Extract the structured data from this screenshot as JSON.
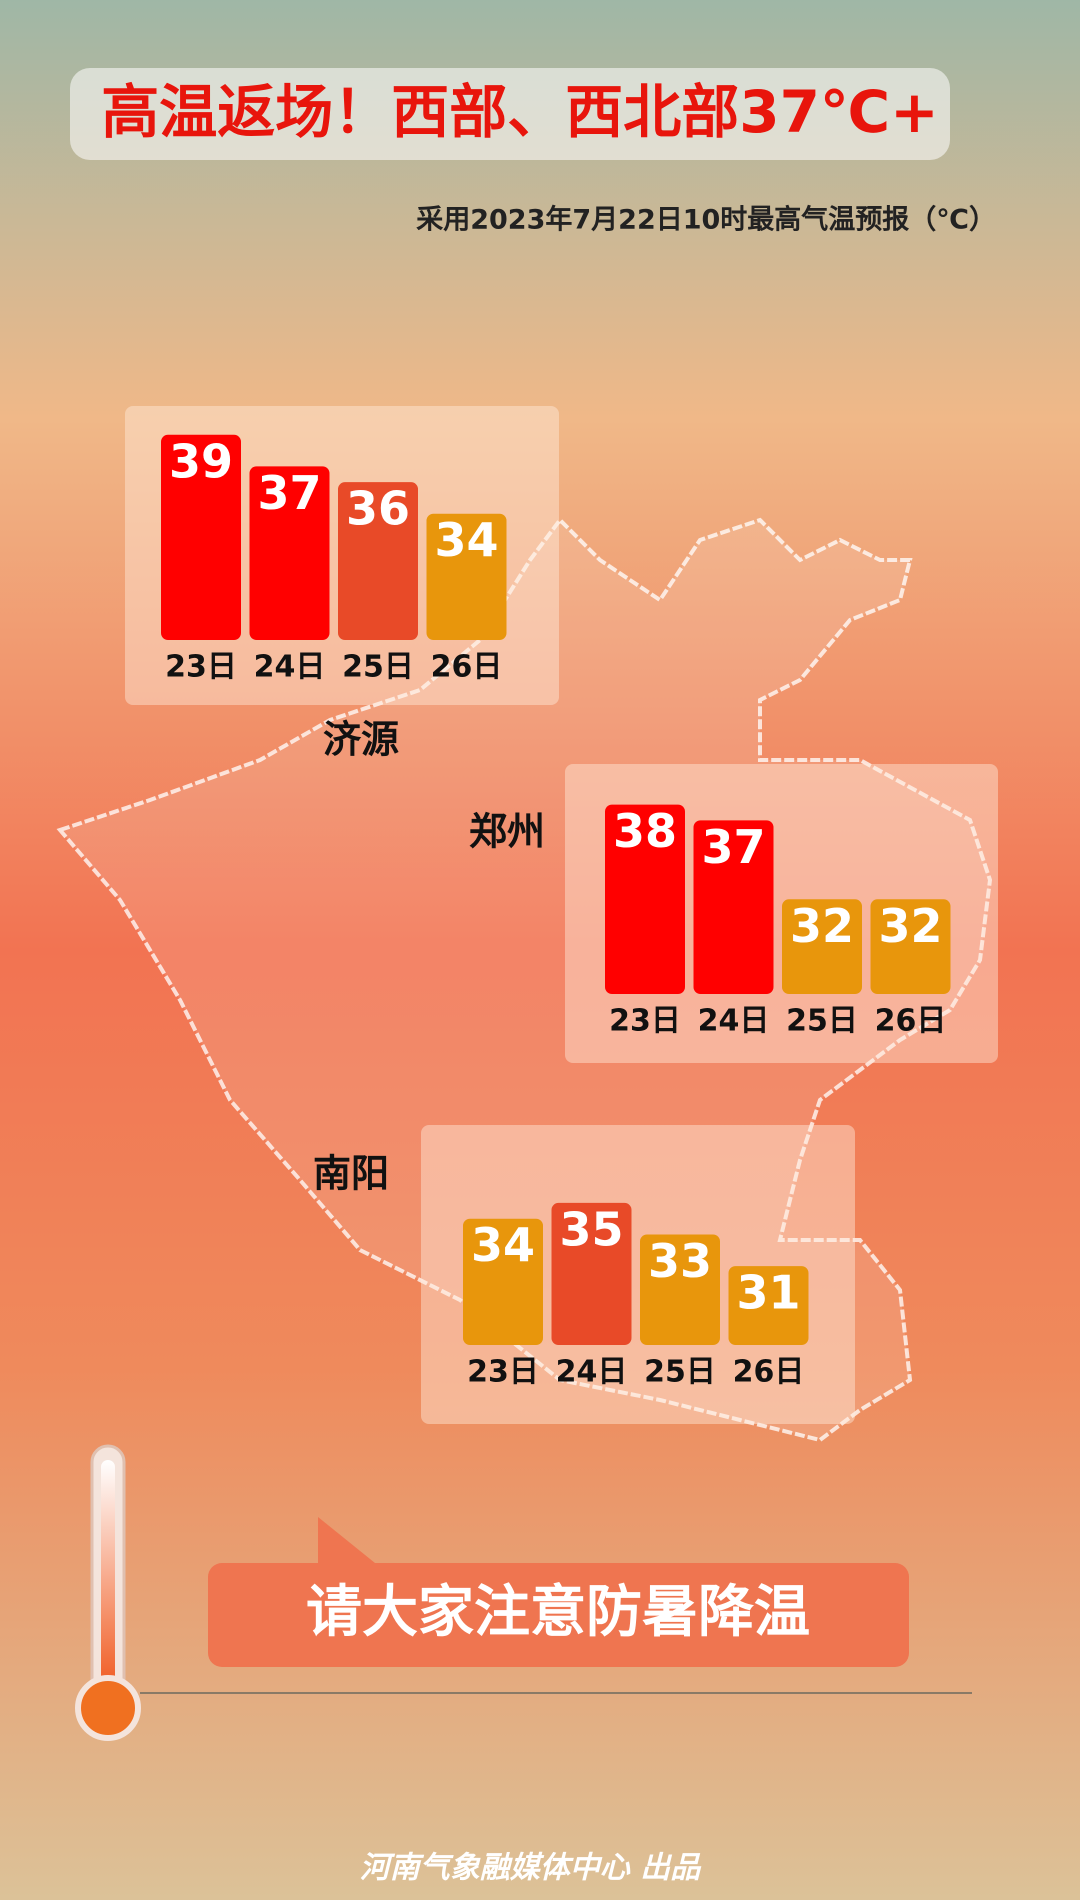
{
  "header": {
    "title": "高温返场！西部、西北部37℃+",
    "subtitle": "采用2023年7月22日10时最高气温预报（℃）"
  },
  "chart_data": [
    {
      "type": "bar",
      "title": "济源",
      "categories": [
        "23日",
        "24日",
        "25日",
        "26日"
      ],
      "values": [
        39,
        37,
        36,
        34
      ],
      "colors": [
        "#ff0000",
        "#ff0000",
        "#e84a28",
        "#e8960c"
      ],
      "ylim": [
        26,
        40
      ]
    },
    {
      "type": "bar",
      "title": "郑州",
      "categories": [
        "23日",
        "24日",
        "25日",
        "26日"
      ],
      "values": [
        38,
        37,
        32,
        32
      ],
      "colors": [
        "#ff0000",
        "#ff0000",
        "#e8960c",
        "#e8960c"
      ],
      "ylim": [
        26,
        40
      ]
    },
    {
      "type": "bar",
      "title": "南阳",
      "categories": [
        "23日",
        "24日",
        "25日",
        "26日"
      ],
      "values": [
        34,
        35,
        33,
        31
      ],
      "colors": [
        "#e8960c",
        "#e84a28",
        "#e8960c",
        "#e8960c"
      ],
      "ylim": [
        26,
        40
      ]
    }
  ],
  "callout": "请大家注意防暑降温",
  "footer": "河南气象融媒体中心 出品"
}
